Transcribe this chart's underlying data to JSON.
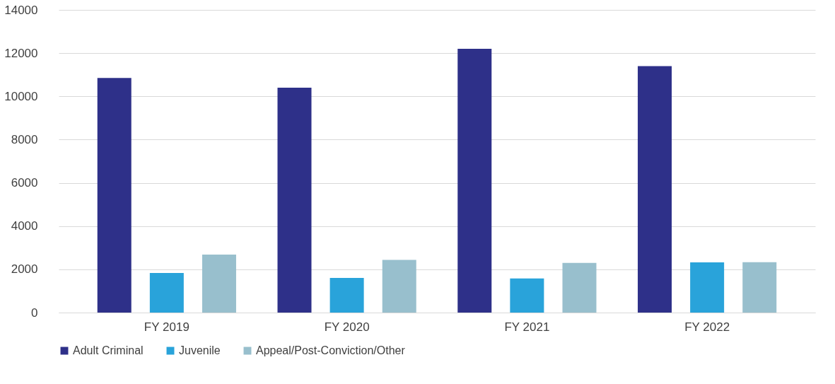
{
  "chart_data": {
    "type": "bar",
    "categories": [
      "FY 2019",
      "FY 2020",
      "FY 2021",
      "FY 2022"
    ],
    "series": [
      {
        "name": "Adult Criminal",
        "color": "#2e3089",
        "values": [
          10850,
          10400,
          12200,
          11400
        ]
      },
      {
        "name": "Juvenile",
        "color": "#29a3da",
        "values": [
          1830,
          1600,
          1580,
          2320
        ]
      },
      {
        "name": "Appeal/Post-Conviction/Other",
        "color": "#98bfcd",
        "values": [
          2680,
          2440,
          2300,
          2330
        ]
      }
    ],
    "ylim": [
      0,
      14000
    ],
    "yticks": [
      0,
      2000,
      4000,
      6000,
      8000,
      10000,
      12000,
      14000
    ],
    "grid": "y",
    "legend": "bottom"
  }
}
